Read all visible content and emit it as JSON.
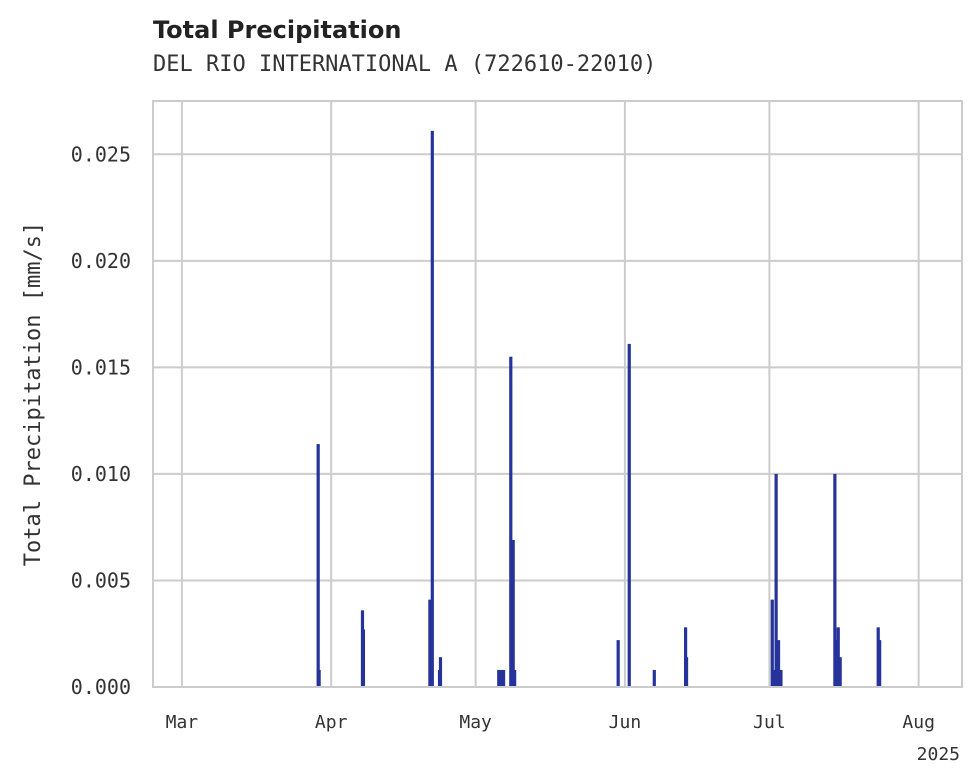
{
  "chart_data": {
    "type": "bar",
    "title": "Total Precipitation",
    "subtitle": "DEL RIO INTERNATIONAL A (722610-22010)",
    "ylabel": "Total Precipitation [mm/s]",
    "xlabel": "",
    "year_label": "2025",
    "ylim": [
      0,
      0.0275
    ],
    "yticks": [
      "0.000",
      "0.005",
      "0.010",
      "0.015",
      "0.020",
      "0.025"
    ],
    "ytick_values": [
      0,
      0.005,
      0.01,
      0.015,
      0.02,
      0.025
    ],
    "xlim_days": [
      -6,
      162
    ],
    "xticks": [
      {
        "label": "Mar",
        "day": 0
      },
      {
        "label": "Apr",
        "day": 31
      },
      {
        "label": "May",
        "day": 61
      },
      {
        "label": "Jun",
        "day": 92
      },
      {
        "label": "Jul",
        "day": 122
      },
      {
        "label": "Aug",
        "day": 153
      }
    ],
    "series": [
      {
        "name": "Total Precipitation",
        "color": "#26339a",
        "x_days": [
          28.3,
          28.5,
          37.5,
          37.7,
          51.5,
          52.0,
          53.5,
          53.7,
          65.8,
          66.3,
          66.8,
          68.3,
          68.8,
          69.1,
          90.6,
          92.9,
          98.1,
          104.6,
          104.8,
          122.6,
          123.0,
          123.4,
          123.9,
          124.4,
          135.6,
          135.9,
          136.3,
          136.7,
          144.6,
          144.9
        ],
        "values": [
          0.0114,
          0.0008,
          0.0036,
          0.0027,
          0.0041,
          0.0261,
          0.0008,
          0.0014,
          0.0008,
          0.0008,
          0.0008,
          0.0155,
          0.0069,
          0.0008,
          0.0022,
          0.0161,
          0.0008,
          0.0028,
          0.0014,
          0.0041,
          0.0008,
          0.01,
          0.0022,
          0.0008,
          0.01,
          0.0022,
          0.0028,
          0.0014,
          0.0028,
          0.0022
        ]
      }
    ],
    "grid": true
  }
}
